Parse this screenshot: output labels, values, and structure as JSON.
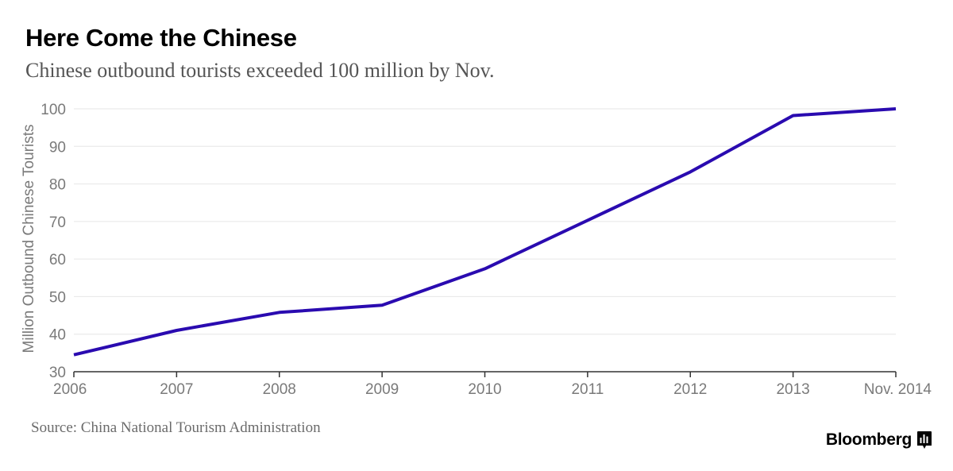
{
  "title": "Here Come the Chinese",
  "subtitle": "Chinese outbound tourists exceeded 100 million by Nov.",
  "source": "Source: China National Tourism Administration",
  "brand": {
    "name": "Bloomberg",
    "icon": "bloomberg-bar-chart-icon"
  },
  "colors": {
    "line": "#2a0bb0",
    "grid": "#e6e6e6",
    "axis": "#333333",
    "tick_text": "#7a7a7a"
  },
  "chart_data": {
    "type": "line",
    "title": "Here Come the Chinese",
    "subtitle": "Chinese outbound tourists exceeded 100 million by Nov.",
    "xlabel": "",
    "ylabel": "Million Outbound Chinese Tourists",
    "categories": [
      "2006",
      "2007",
      "2008",
      "2009",
      "2010",
      "2011",
      "2012",
      "2013",
      "Nov. 2014"
    ],
    "series": [
      {
        "values": [
          34.5,
          41,
          45.8,
          47.7,
          57.4,
          70.3,
          83.2,
          98.2,
          100
        ]
      }
    ],
    "ylim": [
      30,
      100
    ],
    "yticks": [
      30,
      40,
      50,
      60,
      70,
      80,
      90,
      100
    ],
    "grid": true,
    "legend": "none"
  }
}
